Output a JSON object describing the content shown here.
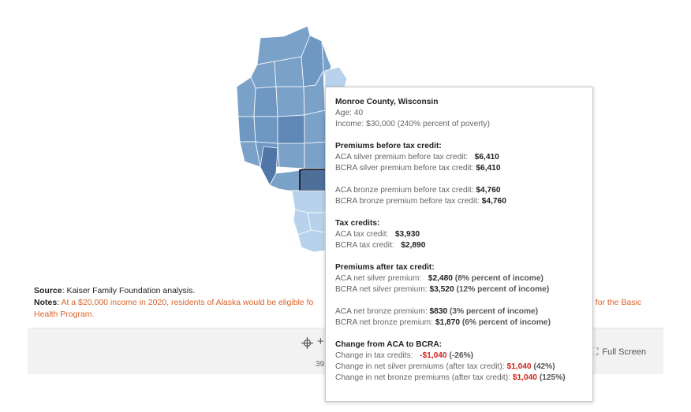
{
  "tooltip": {
    "county": "Monroe County, Wisconsin",
    "age_label": "Age:",
    "age_value": "40",
    "income_label": "Income:",
    "income_value": "$30,000 (240% percent of poverty)",
    "before_header": "Premiums before tax credit:",
    "aca_silver_before_label": "ACA silver premium before tax credit:",
    "aca_silver_before_value": "$6,410",
    "bcra_silver_before_label": "BCRA silver premium before tax credit:",
    "bcra_silver_before_value": "$6,410",
    "aca_bronze_before_label": "ACA bronze premium before tax credit:",
    "aca_bronze_before_value": "$4,760",
    "bcra_bronze_before_label": "BCRA bronze premium before tax credit:",
    "bcra_bronze_before_value": "$4,760",
    "credits_header": "Tax credits:",
    "aca_credit_label": "ACA tax credit:",
    "aca_credit_value": "$3,930",
    "bcra_credit_label": "BCRA tax credit:",
    "bcra_credit_value": "$2,890",
    "after_header": "Premiums after tax credit:",
    "aca_net_silver_label": "ACA net silver premium:",
    "aca_net_silver_value": "$2,480",
    "aca_net_silver_pct": "(8% percent of income)",
    "bcra_net_silver_label": "BCRA net silver premium:",
    "bcra_net_silver_value": "$3,520",
    "bcra_net_silver_pct": "(12% percent of income)",
    "aca_net_bronze_label": "ACA net bronze premium:",
    "aca_net_bronze_value": "$830",
    "aca_net_bronze_pct": "(3% percent of income)",
    "bcra_net_bronze_label": "BCRA net bronze premium:",
    "bcra_net_bronze_value": "$1,870",
    "bcra_net_bronze_pct": "(6% percent of income)",
    "change_header": "Change from ACA to BCRA:",
    "change_credits_label": "Change in tax credits:",
    "change_credits_value": "-$1,040",
    "change_credits_pct": "(-26%)",
    "change_silver_label": "Change in net silver premiums (after tax credit):",
    "change_silver_value": "$1,040",
    "change_silver_pct": "(42%)",
    "change_bronze_label": "Change in net bronze premiums (after tax credit):",
    "change_bronze_value": "$1,040",
    "change_bronze_pct": "(125%)"
  },
  "footer": {
    "source_label": "Source",
    "source_text": ": Kaiser Family Foundation analysis.",
    "notes_label": "Notes",
    "notes_colon": ":",
    "notes_text_left": " At a $20,000 income in 2020, residents of Alaska would be eligible fo",
    "notes_text_right": "e for the Basic",
    "notes_text_line2": "Health Program."
  },
  "toolbar": {
    "count_fragment": "39",
    "fullscreen_label": "Full Screen",
    "move_icon": "move-icon",
    "zoom_icon": "plus-icon",
    "fullscreen_icon": "fullscreen-icon"
  },
  "colors": {
    "map_dark": "#5b82b1",
    "map_medium": "#7aa1c8",
    "map_light": "#b7d2ea",
    "map_selected": "#4d6f9a",
    "note_orange": "#d9622b",
    "negative_red": "#d0261f"
  }
}
